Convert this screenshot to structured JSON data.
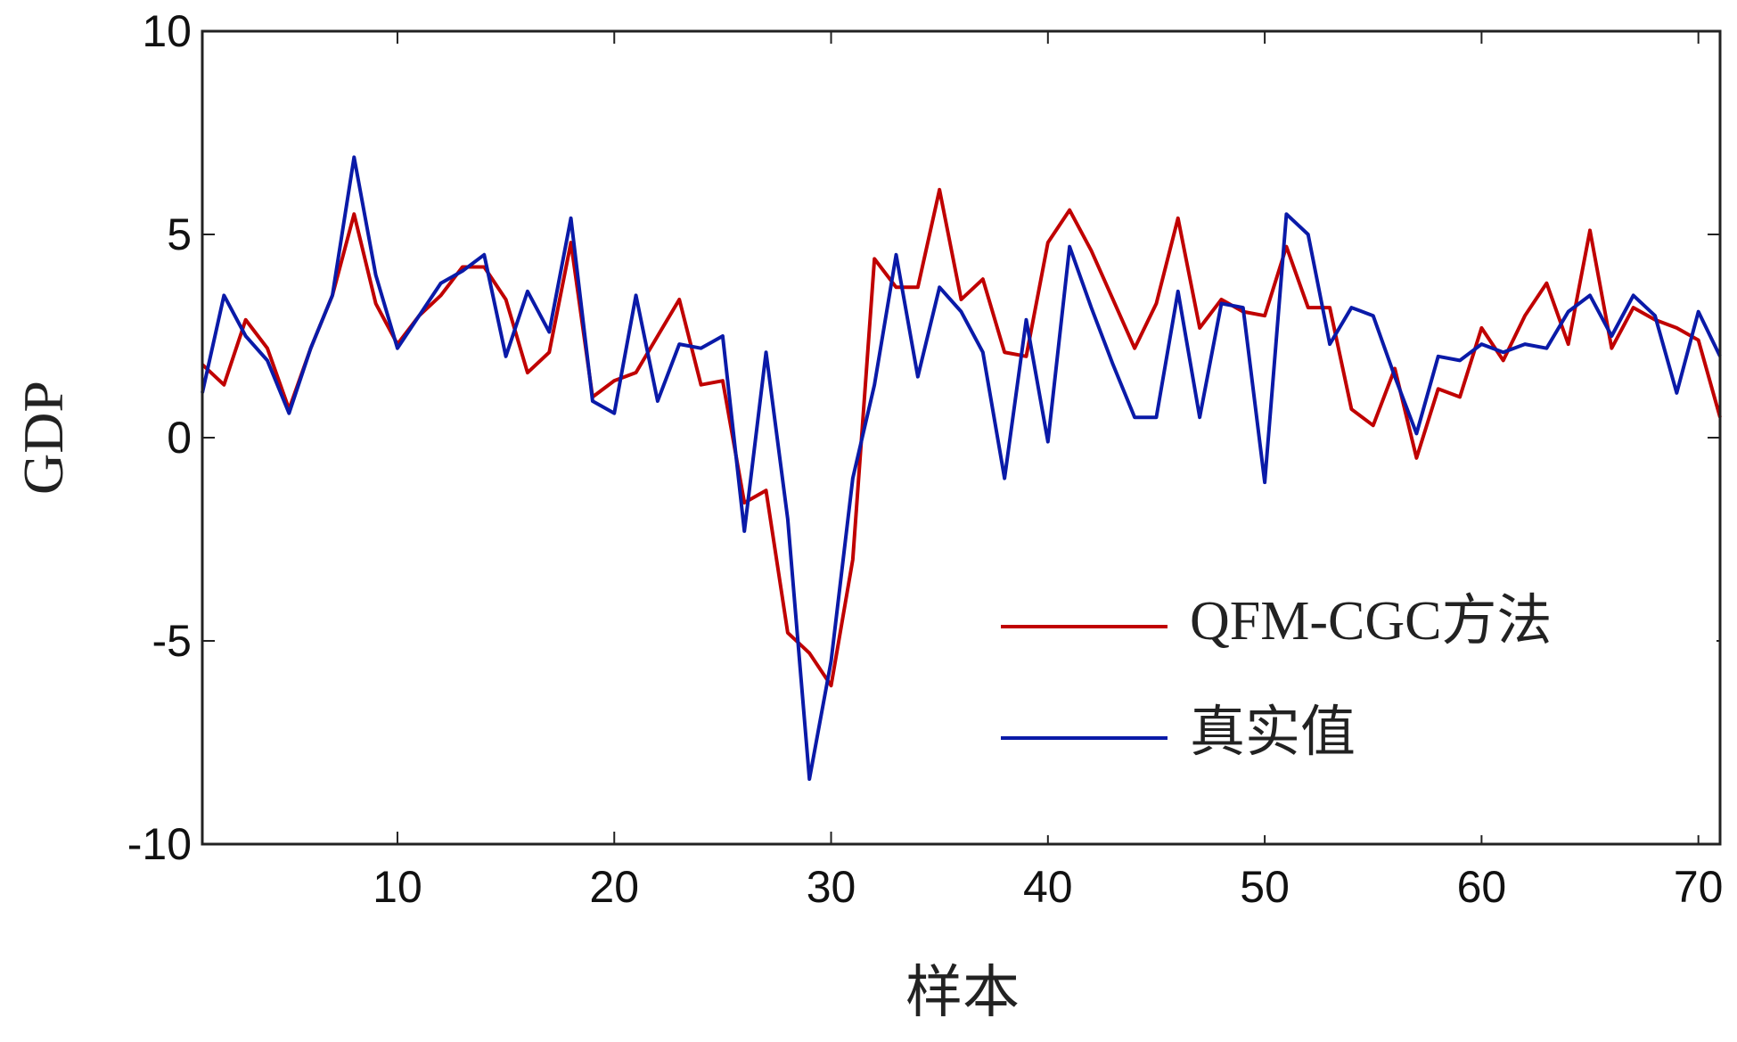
{
  "chart_data": {
    "type": "line",
    "x_label": "样本",
    "y_label": "GDP",
    "x": [
      1,
      2,
      3,
      4,
      5,
      6,
      7,
      8,
      9,
      10,
      11,
      12,
      13,
      14,
      15,
      16,
      17,
      18,
      19,
      20,
      21,
      22,
      23,
      24,
      25,
      26,
      27,
      28,
      29,
      30,
      31,
      32,
      33,
      34,
      35,
      36,
      37,
      38,
      39,
      40,
      41,
      42,
      43,
      44,
      45,
      46,
      47,
      48,
      49,
      50,
      51,
      52,
      53,
      54,
      55,
      56,
      57,
      58,
      59,
      60,
      61,
      62,
      63,
      64,
      65,
      66,
      67,
      68,
      69,
      70,
      71
    ],
    "series": [
      {
        "name": "QFM-CGC方法",
        "color": "#c00000",
        "values": [
          1.8,
          1.3,
          2.9,
          2.2,
          0.7,
          2.2,
          3.5,
          5.5,
          3.3,
          2.3,
          3.0,
          3.5,
          4.2,
          4.2,
          3.4,
          1.6,
          2.1,
          4.8,
          1.0,
          1.4,
          1.6,
          2.5,
          3.4,
          1.3,
          1.4,
          -1.6,
          -1.3,
          -4.8,
          -5.3,
          -6.1,
          -3.0,
          4.4,
          3.7,
          3.7,
          6.1,
          3.4,
          3.9,
          2.1,
          2.0,
          4.8,
          5.6,
          4.6,
          3.4,
          2.2,
          3.3,
          5.4,
          2.7,
          3.4,
          3.1,
          3.0,
          4.7,
          3.2,
          3.2,
          0.7,
          0.3,
          1.7,
          -0.5,
          1.2,
          1.0,
          2.7,
          1.9,
          3.0,
          3.8,
          2.3,
          5.1,
          2.2,
          3.2,
          2.9,
          2.7,
          2.4,
          0.5
        ]
      },
      {
        "name": "真实值",
        "color": "#0a1aa8",
        "values": [
          1.1,
          3.5,
          2.5,
          1.9,
          0.6,
          2.2,
          3.5,
          6.9,
          4.0,
          2.2,
          3.0,
          3.8,
          4.1,
          4.5,
          2.0,
          3.6,
          2.6,
          5.4,
          0.9,
          0.6,
          3.5,
          0.9,
          2.3,
          2.2,
          2.5,
          -2.3,
          2.1,
          -2.0,
          -8.4,
          -5.5,
          -1.0,
          1.3,
          4.5,
          1.5,
          3.7,
          3.1,
          2.1,
          -1.0,
          2.9,
          -0.1,
          4.7,
          3.2,
          1.8,
          0.5,
          0.5,
          3.6,
          0.5,
          3.3,
          3.2,
          -1.1,
          5.5,
          5.0,
          2.3,
          3.2,
          3.0,
          1.5,
          0.1,
          2.0,
          1.9,
          2.3,
          2.1,
          2.3,
          2.2,
          3.1,
          3.5,
          2.5,
          3.5,
          3.0,
          1.1,
          3.1,
          2.0
        ]
      }
    ],
    "xlim": [
      1,
      71
    ],
    "xticks": [
      10,
      20,
      30,
      40,
      50,
      60,
      70
    ],
    "ylim": [
      -10,
      10
    ],
    "yticks": [
      -10,
      -5,
      0,
      5,
      10
    ],
    "grid": false,
    "legend": "lower right"
  }
}
